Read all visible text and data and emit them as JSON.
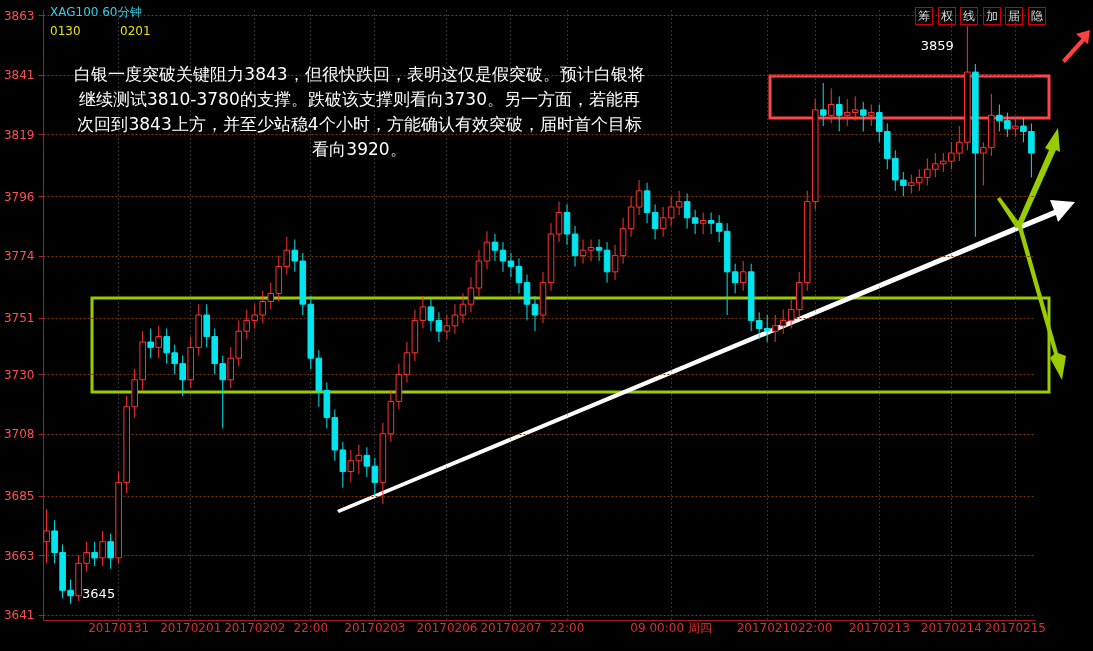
{
  "chart_data": {
    "type": "candlestick",
    "title": "XAG100 60分钟",
    "categories": [
      null,
      null,
      null,
      null,
      null,
      null,
      null,
      null,
      null,
      "20170131",
      null,
      null,
      null,
      null,
      null,
      null,
      null,
      null,
      "20170201",
      null,
      null,
      null,
      null,
      null,
      null,
      null,
      "20170202",
      null,
      null,
      null,
      null,
      null,
      null,
      "22:00",
      null,
      null,
      null,
      null,
      null,
      null,
      null,
      "20170203",
      null,
      null,
      null,
      null,
      null,
      null,
      null,
      null,
      "20170206",
      null,
      null,
      null,
      null,
      null,
      null,
      null,
      "20170207",
      null,
      null,
      null,
      null,
      null,
      null,
      "22:00",
      null,
      null,
      null,
      null,
      null,
      null,
      null,
      null,
      null,
      null,
      null,
      null,
      "09 00:00 周四",
      null,
      null,
      null,
      null,
      null,
      null,
      null,
      null,
      null,
      null,
      null,
      "20170210",
      null,
      null,
      null,
      null,
      null,
      "22:00",
      null,
      null,
      null,
      null,
      null,
      null,
      null,
      "20170213",
      null,
      null,
      null,
      null,
      null,
      null,
      null,
      null,
      "20170214",
      null,
      null,
      null,
      null,
      null,
      null,
      null,
      "20170215",
      null,
      null
    ],
    "ohlc": [
      [
        3668,
        3680,
        3660,
        3672
      ],
      [
        3672,
        3676,
        3660,
        3664
      ],
      [
        3664,
        3667,
        3647,
        3650
      ],
      [
        3650,
        3654,
        3645,
        3648
      ],
      [
        3648,
        3663,
        3646,
        3660
      ],
      [
        3660,
        3668,
        3657,
        3664
      ],
      [
        3664,
        3668,
        3659,
        3662
      ],
      [
        3662,
        3672,
        3659,
        3668
      ],
      [
        3668,
        3671,
        3658,
        3662
      ],
      [
        3662,
        3694,
        3660,
        3690
      ],
      [
        3690,
        3722,
        3686,
        3718
      ],
      [
        3718,
        3732,
        3714,
        3728
      ],
      [
        3728,
        3746,
        3724,
        3742
      ],
      [
        3742,
        3747,
        3736,
        3740
      ],
      [
        3740,
        3748,
        3736,
        3744
      ],
      [
        3744,
        3747,
        3734,
        3738
      ],
      [
        3738,
        3741,
        3730,
        3734
      ],
      [
        3734,
        3737,
        3722,
        3728
      ],
      [
        3728,
        3744,
        3725,
        3740
      ],
      [
        3740,
        3756,
        3737,
        3752
      ],
      [
        3752,
        3756,
        3740,
        3744
      ],
      [
        3744,
        3747,
        3730,
        3734
      ],
      [
        3734,
        3737,
        3710,
        3728
      ],
      [
        3728,
        3740,
        3725,
        3736
      ],
      [
        3736,
        3750,
        3733,
        3746
      ],
      [
        3746,
        3754,
        3743,
        3750
      ],
      [
        3750,
        3756,
        3747,
        3752
      ],
      [
        3752,
        3761,
        3749,
        3757
      ],
      [
        3757,
        3764,
        3754,
        3760
      ],
      [
        3760,
        3774,
        3757,
        3770
      ],
      [
        3770,
        3781,
        3767,
        3776
      ],
      [
        3776,
        3780,
        3768,
        3772
      ],
      [
        3772,
        3775,
        3752,
        3756
      ],
      [
        3756,
        3759,
        3732,
        3736
      ],
      [
        3736,
        3739,
        3718,
        3724
      ],
      [
        3724,
        3727,
        3710,
        3714
      ],
      [
        3714,
        3717,
        3698,
        3702
      ],
      [
        3702,
        3705,
        3688,
        3694
      ],
      [
        3694,
        3702,
        3690,
        3698
      ],
      [
        3698,
        3704,
        3693,
        3700
      ],
      [
        3700,
        3703,
        3692,
        3696
      ],
      [
        3696,
        3699,
        3685,
        3690
      ],
      [
        3690,
        3712,
        3682,
        3708
      ],
      [
        3708,
        3724,
        3705,
        3720
      ],
      [
        3720,
        3734,
        3717,
        3730
      ],
      [
        3730,
        3742,
        3727,
        3738
      ],
      [
        3738,
        3754,
        3735,
        3750
      ],
      [
        3750,
        3759,
        3747,
        3755
      ],
      [
        3755,
        3758,
        3746,
        3750
      ],
      [
        3750,
        3753,
        3742,
        3746
      ],
      [
        3746,
        3752,
        3743,
        3748
      ],
      [
        3748,
        3756,
        3745,
        3752
      ],
      [
        3752,
        3760,
        3749,
        3756
      ],
      [
        3756,
        3766,
        3753,
        3762
      ],
      [
        3762,
        3776,
        3759,
        3772
      ],
      [
        3772,
        3783,
        3769,
        3779
      ],
      [
        3779,
        3782,
        3772,
        3776
      ],
      [
        3776,
        3779,
        3768,
        3772
      ],
      [
        3772,
        3775,
        3766,
        3770
      ],
      [
        3770,
        3773,
        3760,
        3764
      ],
      [
        3764,
        3767,
        3750,
        3756
      ],
      [
        3756,
        3759,
        3746,
        3752
      ],
      [
        3752,
        3768,
        3749,
        3764
      ],
      [
        3764,
        3786,
        3761,
        3782
      ],
      [
        3782,
        3794,
        3779,
        3790
      ],
      [
        3790,
        3793,
        3778,
        3782
      ],
      [
        3782,
        3785,
        3770,
        3774
      ],
      [
        3774,
        3780,
        3771,
        3776
      ],
      [
        3776,
        3780,
        3772,
        3777
      ],
      [
        3777,
        3780,
        3772,
        3776
      ],
      [
        3776,
        3779,
        3764,
        3768
      ],
      [
        3768,
        3778,
        3765,
        3774
      ],
      [
        3774,
        3788,
        3771,
        3784
      ],
      [
        3784,
        3796,
        3781,
        3792
      ],
      [
        3792,
        3802,
        3789,
        3798
      ],
      [
        3798,
        3801,
        3786,
        3790
      ],
      [
        3790,
        3793,
        3780,
        3784
      ],
      [
        3784,
        3792,
        3781,
        3788
      ],
      [
        3788,
        3796,
        3785,
        3792
      ],
      [
        3792,
        3798,
        3789,
        3794
      ],
      [
        3794,
        3797,
        3784,
        3788
      ],
      [
        3788,
        3791,
        3782,
        3786
      ],
      [
        3786,
        3790,
        3782,
        3787
      ],
      [
        3787,
        3790,
        3782,
        3786
      ],
      [
        3786,
        3789,
        3779,
        3783
      ],
      [
        3783,
        3786,
        3752,
        3768
      ],
      [
        3768,
        3771,
        3760,
        3764
      ],
      [
        3764,
        3772,
        3761,
        3768
      ],
      [
        3768,
        3771,
        3746,
        3750
      ],
      [
        3750,
        3753,
        3743,
        3747
      ],
      [
        3747,
        3752,
        3742,
        3746
      ],
      [
        3746,
        3752,
        3742,
        3748
      ],
      [
        3748,
        3754,
        3745,
        3750
      ],
      [
        3750,
        3758,
        3747,
        3754
      ],
      [
        3754,
        3768,
        3751,
        3764
      ],
      [
        3764,
        3798,
        3761,
        3794
      ],
      [
        3794,
        3832,
        3791,
        3828
      ],
      [
        3828,
        3838,
        3822,
        3826
      ],
      [
        3826,
        3836,
        3823,
        3830
      ],
      [
        3830,
        3833,
        3820,
        3826
      ],
      [
        3826,
        3832,
        3822,
        3827
      ],
      [
        3827,
        3833,
        3824,
        3828
      ],
      [
        3828,
        3831,
        3820,
        3826
      ],
      [
        3826,
        3830,
        3822,
        3827
      ],
      [
        3827,
        3830,
        3816,
        3820
      ],
      [
        3820,
        3823,
        3806,
        3810
      ],
      [
        3810,
        3813,
        3798,
        3802
      ],
      [
        3802,
        3805,
        3796,
        3800
      ],
      [
        3800,
        3804,
        3797,
        3801
      ],
      [
        3801,
        3806,
        3798,
        3803
      ],
      [
        3803,
        3810,
        3800,
        3806
      ],
      [
        3806,
        3812,
        3803,
        3808
      ],
      [
        3808,
        3812,
        3805,
        3809
      ],
      [
        3809,
        3816,
        3806,
        3812
      ],
      [
        3812,
        3822,
        3809,
        3816
      ],
      [
        3816,
        3859,
        3813,
        3842
      ],
      [
        3842,
        3845,
        3781,
        3812
      ],
      [
        3812,
        3816,
        3800,
        3814
      ],
      [
        3814,
        3834,
        3811,
        3826
      ],
      [
        3826,
        3830,
        3820,
        3824
      ],
      [
        3824,
        3827,
        3818,
        3821
      ],
      [
        3821,
        3825,
        3818,
        3822
      ],
      [
        3822,
        3825,
        3816,
        3820
      ],
      [
        3820,
        3823,
        3803,
        3812
      ]
    ],
    "colors": [
      "#ff3232",
      "#00e5ee",
      "#00e5ee",
      "#00e5ee",
      "#ff3232",
      "#ff3232",
      "#00e5ee",
      "#ff3232",
      "#00e5ee",
      "#ff3232",
      "#ff3232",
      "#ff3232",
      "#ff3232",
      "#00e5ee",
      "#ff3232",
      "#00e5ee",
      "#00e5ee",
      "#00e5ee",
      "#ff3232",
      "#ff3232",
      "#00e5ee",
      "#00e5ee",
      "#00e5ee",
      "#ff3232",
      "#ff3232",
      "#ff3232",
      "#ff3232",
      "#ff3232",
      "#ff3232",
      "#ff3232",
      "#ff3232",
      "#00e5ee",
      "#00e5ee",
      "#00e5ee",
      "#00e5ee",
      "#00e5ee",
      "#00e5ee",
      "#00e5ee",
      "#ff3232",
      "#ff3232",
      "#00e5ee",
      "#00e5ee",
      "#ff3232",
      "#ff3232",
      "#ff3232",
      "#ff3232",
      "#ff3232",
      "#ff3232",
      "#00e5ee",
      "#00e5ee",
      "#ff3232",
      "#ff3232",
      "#ff3232",
      "#ff3232",
      "#ff3232",
      "#ff3232",
      "#00e5ee",
      "#00e5ee",
      "#00e5ee",
      "#00e5ee",
      "#00e5ee",
      "#00e5ee",
      "#ff3232",
      "#ff3232",
      "#ff3232",
      "#00e5ee",
      "#00e5ee",
      "#ff3232",
      "#ff3232",
      "#00e5ee",
      "#00e5ee",
      "#ff3232",
      "#ff3232",
      "#ff3232",
      "#ff3232",
      "#00e5ee",
      "#00e5ee",
      "#ff3232",
      "#ff3232",
      "#ff3232",
      "#00e5ee",
      "#00e5ee",
      "#ff3232",
      "#00e5ee",
      "#00e5ee",
      "#00e5ee",
      "#00e5ee",
      "#ff3232",
      "#00e5ee",
      "#00e5ee",
      "#00e5ee",
      "#ff3232",
      "#ff3232",
      "#ff3232",
      "#ff3232",
      "#ff3232",
      "#ff3232",
      "#00e5ee",
      "#ff3232",
      "#00e5ee",
      "#ff3232",
      "#ff3232",
      "#00e5ee",
      "#ff3232",
      "#00e5ee",
      "#00e5ee",
      "#00e5ee",
      "#00e5ee",
      "#ff3232",
      "#ff3232",
      "#ff3232",
      "#ff3232",
      "#ff3232",
      "#ff3232",
      "#ff3232",
      "#ff3232",
      "#00e5ee",
      "#ff3232",
      "#ff3232",
      "#00e5ee",
      "#00e5ee",
      "#ff3232",
      "#00e5ee",
      "#00e5ee"
    ],
    "ylim": [
      3639,
      3865
    ],
    "yticks": [
      3641,
      3663,
      3685,
      3708,
      3730,
      3751,
      3774,
      3796,
      3819,
      3841,
      3863
    ],
    "grid": true,
    "annotations": [
      "白银一度突破关键阻力3843，但很快跌回，表明这仅是假突破。预计白银将继续测试3810-3780的支撑。跌破该支撑则看向3730。另一方面，若能再次回到3843上方，并至少站稳4个小时，方能确认有效突破，届时首个目标看向3920。",
      "3859",
      "3645",
      "0130",
      "0201",
      "筹",
      "权",
      "线",
      "加",
      "届",
      "隐"
    ]
  }
}
